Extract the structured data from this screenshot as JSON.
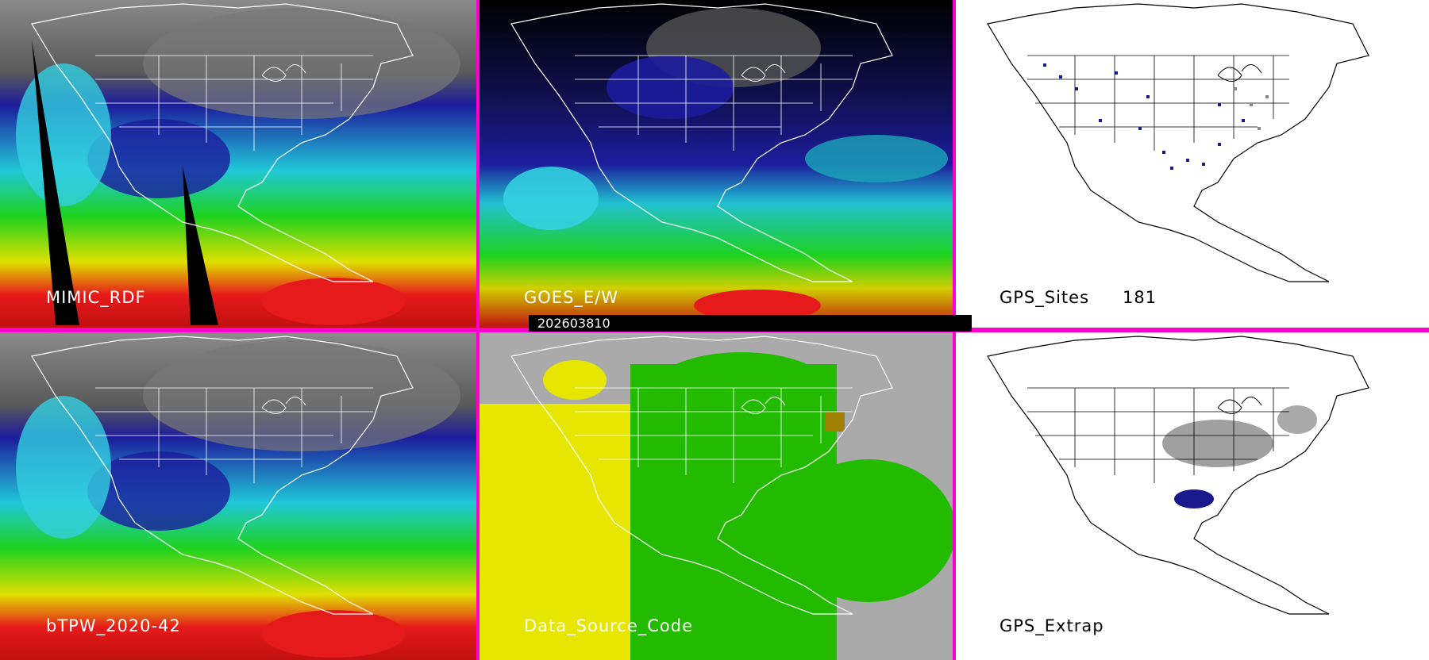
{
  "panels": {
    "mimic": {
      "label": "MIMIC_RDF"
    },
    "goes": {
      "label": "GOES_E/W"
    },
    "gps_sites": {
      "label": "GPS_Sites",
      "count": "181"
    },
    "btpw": {
      "label": "bTPW_2020-42"
    },
    "source_code": {
      "label": "Data_Source_Code"
    },
    "gps_extrap": {
      "label": "GPS_Extrap"
    }
  },
  "timestamp": "202603810",
  "colors": {
    "divider": "#ff00cc",
    "tpw_scale": [
      "#7a7a7a",
      "#1c1c9c",
      "#33e0e0",
      "#1ee01e",
      "#e0e000",
      "#e61a1a"
    ],
    "source_gray": "#aaaaaa",
    "source_yellow": "#e6e600",
    "source_green": "#22bb00",
    "gps_site": "#1a1a8c"
  },
  "icons": [
    "map-outline-icon"
  ]
}
